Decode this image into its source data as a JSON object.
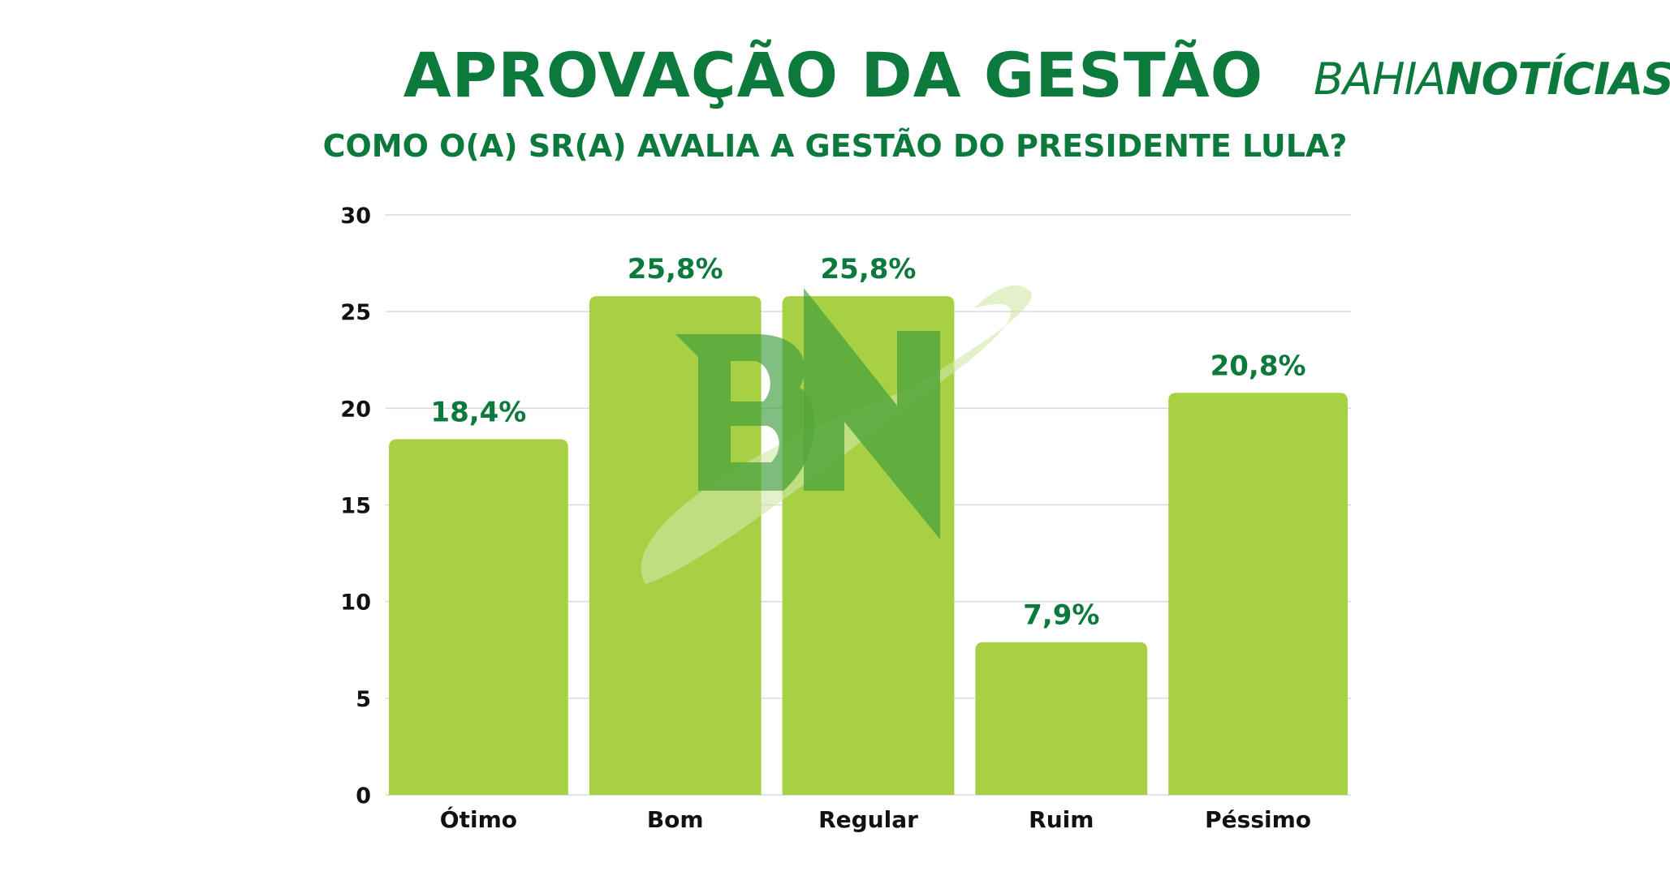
{
  "header": {
    "title": "APROVAÇÃO DA GESTÃO",
    "subtitle": "COMO O(A) SR(A) AVALIA A GESTÃO DO PRESIDENTE LULA?",
    "logo_part1": "BAHIA",
    "logo_part2": "NOTÍCIAS",
    "watermark_text": "BN"
  },
  "colors": {
    "title": "#0c7a3c",
    "bar": "#a8d045",
    "grid": "#d9d9d9",
    "data_label": "#0c7a3c",
    "watermark": "#3a9a3a"
  },
  "chart_data": {
    "type": "bar",
    "title": "APROVAÇÃO DA GESTÃO",
    "subtitle": "COMO O(A) SR(A) AVALIA A GESTÃO DO PRESIDENTE LULA?",
    "categories": [
      "Ótimo",
      "Bom",
      "Regular",
      "Ruim",
      "Péssimo"
    ],
    "values": [
      18.4,
      25.8,
      25.8,
      7.9,
      20.8
    ],
    "data_labels": [
      "18,4%",
      "25,8%",
      "25,8%",
      "7,9%",
      "20,8%"
    ],
    "yticks": [
      0,
      5,
      10,
      15,
      20,
      25,
      30
    ],
    "ylim": [
      0,
      30
    ],
    "grid": true,
    "legend": "none"
  }
}
